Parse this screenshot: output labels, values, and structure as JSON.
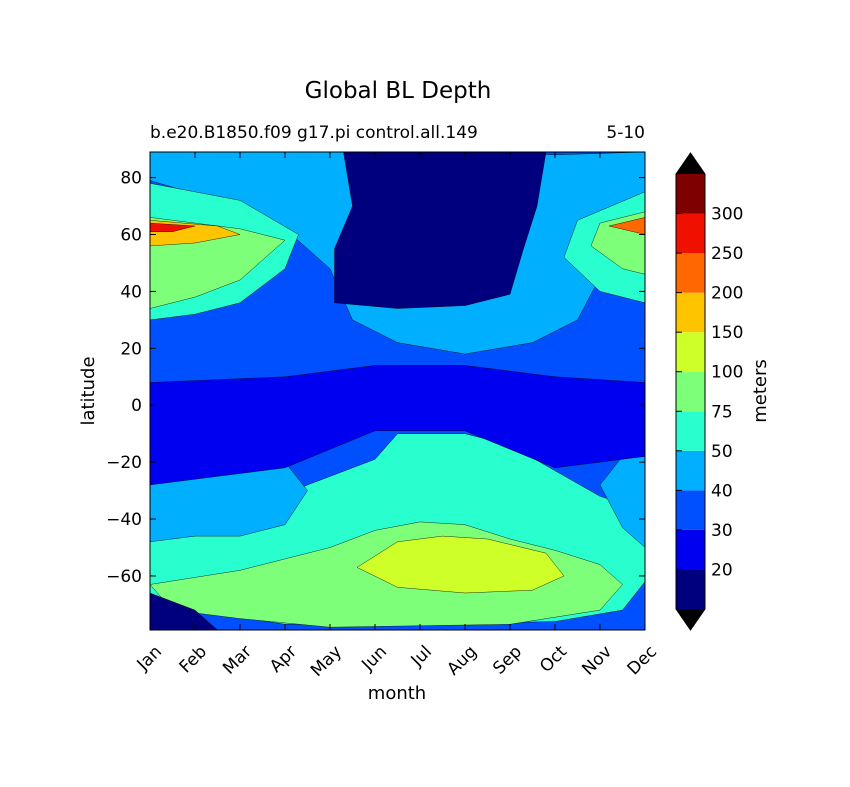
{
  "chart_data": {
    "type": "contourf",
    "title": "Global BL Depth",
    "subtitle_left": "b.e20.B1850.f09 g17.pi control.all.149",
    "subtitle_right": "5-10",
    "xlabel": "month",
    "ylabel": "latitude",
    "x_ticks": [
      "Jan",
      "Feb",
      "Mar",
      "Apr",
      "May",
      "Jun",
      "Jul",
      "Aug",
      "Sep",
      "Oct",
      "Nov",
      "Dec"
    ],
    "xlim": [
      1,
      12
    ],
    "y_ticks": [
      80,
      60,
      40,
      20,
      0,
      -20,
      -40,
      -60
    ],
    "y_tick_labels": [
      "80",
      "60",
      "40",
      "20",
      "0",
      "−20",
      "−40",
      "−60"
    ],
    "ylim": [
      -79,
      89
    ],
    "colorbar": {
      "label": "meters",
      "levels": [
        10,
        20,
        30,
        40,
        50,
        75,
        100,
        150,
        200,
        250,
        300,
        350
      ],
      "tick_labels": [
        "20",
        "30",
        "40",
        "50",
        "75",
        "100",
        "150",
        "200",
        "250",
        "300"
      ],
      "colors": [
        "#00007f",
        "#0000f0",
        "#0050ff",
        "#00b0ff",
        "#29ffce",
        "#7dff7a",
        "#ceff29",
        "#ffc400",
        "#ff6800",
        "#f01000",
        "#7f0000"
      ],
      "extend": "both",
      "under_color": "#000000",
      "over_color": "#000000"
    },
    "contour_regions": [
      {
        "name": "southern-ocean-winter",
        "band": 4,
        "points": [
          [
            1,
            -41
          ],
          [
            3,
            -37
          ],
          [
            5,
            -25
          ],
          [
            6,
            -19
          ],
          [
            6.5,
            -10
          ],
          [
            8,
            -10
          ],
          [
            9,
            -14
          ],
          [
            10,
            -23
          ],
          [
            11,
            -32
          ],
          [
            12,
            -37
          ],
          [
            12,
            -62
          ],
          [
            11.5,
            -72
          ],
          [
            10,
            -76
          ],
          [
            7,
            -77
          ],
          [
            4,
            -77
          ],
          [
            2,
            -72
          ],
          [
            1,
            -70
          ]
        ]
      },
      {
        "name": "southern-ocean-core",
        "band": 5,
        "points": [
          [
            1,
            -63
          ],
          [
            3,
            -58
          ],
          [
            5,
            -50
          ],
          [
            6,
            -44
          ],
          [
            7,
            -41
          ],
          [
            8,
            -42
          ],
          [
            9,
            -47
          ],
          [
            10,
            -51
          ],
          [
            11,
            -56
          ],
          [
            11.5,
            -63
          ],
          [
            11,
            -72
          ],
          [
            9,
            -77
          ],
          [
            5,
            -78
          ],
          [
            3,
            -75
          ],
          [
            1.5,
            -72
          ]
        ]
      },
      {
        "name": "southern-ocean-peak",
        "band": 6,
        "points": [
          [
            5.6,
            -57
          ],
          [
            6.5,
            -48
          ],
          [
            7.5,
            -46
          ],
          [
            8.5,
            -47
          ],
          [
            9.8,
            -52
          ],
          [
            10.2,
            -60
          ],
          [
            9.5,
            -65
          ],
          [
            8,
            -66
          ],
          [
            6.5,
            -64
          ]
        ]
      },
      {
        "name": "antarctic-coast",
        "band": 0,
        "points": [
          [
            1,
            -66
          ],
          [
            2,
            -72
          ],
          [
            2.5,
            -79
          ],
          [
            1,
            -79
          ]
        ]
      },
      {
        "name": "south-subtropics-left",
        "band": 3,
        "points": [
          [
            1,
            -48
          ],
          [
            2,
            -46
          ],
          [
            3,
            -46
          ],
          [
            4,
            -42
          ],
          [
            4.5,
            -30
          ],
          [
            4,
            -20
          ],
          [
            2,
            -22
          ],
          [
            1,
            -27
          ]
        ]
      },
      {
        "name": "south-subtropics-right",
        "band": 3,
        "points": [
          [
            12,
            -50
          ],
          [
            11.5,
            -43
          ],
          [
            11,
            -28
          ],
          [
            11.5,
            -18
          ],
          [
            12,
            -18
          ]
        ]
      },
      {
        "name": "north-mid-lat",
        "band": 3,
        "points": [
          [
            1,
            79
          ],
          [
            2.5,
            72
          ],
          [
            4,
            62
          ],
          [
            5,
            48
          ],
          [
            5.5,
            30
          ],
          [
            6.5,
            22
          ],
          [
            8,
            18
          ],
          [
            9.5,
            22
          ],
          [
            10.5,
            30
          ],
          [
            11,
            45
          ],
          [
            12,
            55
          ],
          [
            12,
            89
          ],
          [
            10,
            88
          ],
          [
            8,
            89
          ],
          [
            6,
            89
          ],
          [
            4,
            89
          ],
          [
            2,
            89
          ],
          [
            1,
            89
          ]
        ]
      },
      {
        "name": "north-storm-track-left",
        "band": 4,
        "points": [
          [
            1,
            78
          ],
          [
            3,
            72
          ],
          [
            4.3,
            60
          ],
          [
            4,
            48
          ],
          [
            3,
            36
          ],
          [
            2,
            32
          ],
          [
            1,
            30
          ]
        ]
      },
      {
        "name": "north-storm-track-right",
        "band": 4,
        "points": [
          [
            12,
            75
          ],
          [
            10.5,
            65
          ],
          [
            10.2,
            52
          ],
          [
            11,
            40
          ],
          [
            12,
            36
          ]
        ]
      },
      {
        "name": "north-peak-left",
        "band": 5,
        "points": [
          [
            1,
            66
          ],
          [
            3,
            62
          ],
          [
            4,
            58
          ],
          [
            3,
            44
          ],
          [
            2,
            38
          ],
          [
            1,
            34
          ]
        ]
      },
      {
        "name": "north-peak-right",
        "band": 5,
        "points": [
          [
            12,
            68
          ],
          [
            11,
            64
          ],
          [
            10.8,
            56
          ],
          [
            11.5,
            48
          ],
          [
            12,
            46
          ]
        ]
      },
      {
        "name": "north-core-left",
        "band": 7,
        "points": [
          [
            1,
            65
          ],
          [
            2.5,
            63
          ],
          [
            3,
            60
          ],
          [
            2,
            57
          ],
          [
            1,
            56
          ]
        ]
      },
      {
        "name": "north-max-left",
        "band": 9,
        "points": [
          [
            1,
            64
          ],
          [
            2,
            63
          ],
          [
            1.5,
            61
          ],
          [
            1,
            61
          ]
        ]
      },
      {
        "name": "north-max-right",
        "band": 8,
        "points": [
          [
            12,
            66
          ],
          [
            11.2,
            63
          ],
          [
            12,
            60
          ]
        ]
      },
      {
        "name": "arctic-summer-minimum",
        "band": 0,
        "points": [
          [
            5.3,
            89
          ],
          [
            5.5,
            70
          ],
          [
            5.1,
            55
          ],
          [
            5.1,
            36
          ],
          [
            6.5,
            34
          ],
          [
            8,
            35
          ],
          [
            9,
            39
          ],
          [
            9.3,
            55
          ],
          [
            9.6,
            70
          ],
          [
            9.8,
            89
          ]
        ]
      },
      {
        "name": "tropics-mid",
        "band": 1,
        "points": [
          [
            1,
            8
          ],
          [
            4,
            10
          ],
          [
            6,
            14
          ],
          [
            8,
            14
          ],
          [
            10,
            10
          ],
          [
            12,
            8
          ],
          [
            12,
            -18
          ],
          [
            10,
            -22
          ],
          [
            8,
            -9
          ],
          [
            6,
            -9
          ],
          [
            4,
            -22
          ],
          [
            1,
            -28
          ]
        ]
      }
    ]
  }
}
